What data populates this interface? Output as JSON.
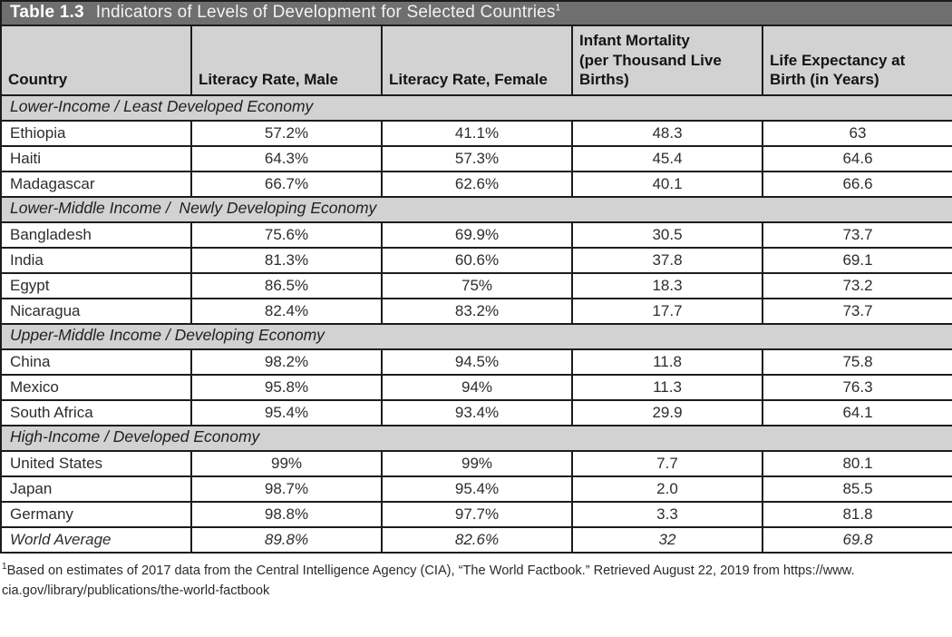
{
  "colors": {
    "title_bar_bg": "#6f6f6f",
    "header_bg": "#d2d2d2",
    "border": "#1c1c1c"
  },
  "table": {
    "title_label": "Table 1.3",
    "title_text": "Indicators of Levels of Development for Selected Countries",
    "title_superscript": "1",
    "columns": [
      {
        "lines": [
          "Country"
        ]
      },
      {
        "lines": [
          "Literacy Rate, Male"
        ]
      },
      {
        "lines": [
          "Literacy Rate, Female"
        ]
      },
      {
        "lines": [
          "Infant Mortality",
          "(per Thousand Live",
          "Births)"
        ]
      },
      {
        "lines": [
          "Life Expectancy at",
          "Birth (in Years)"
        ]
      }
    ],
    "sections": [
      {
        "label": "Lower-Income / Least Developed Economy",
        "rows": [
          {
            "country": "Ethiopia",
            "literacy_male": "57.2%",
            "literacy_female": "41.1%",
            "infant_mortality": "48.3",
            "life_expectancy": "63"
          },
          {
            "country": "Haiti",
            "literacy_male": "64.3%",
            "literacy_female": "57.3%",
            "infant_mortality": "45.4",
            "life_expectancy": "64.6"
          },
          {
            "country": "Madagascar",
            "literacy_male": "66.7%",
            "literacy_female": "62.6%",
            "infant_mortality": "40.1",
            "life_expectancy": "66.6"
          }
        ]
      },
      {
        "label": "Lower-Middle Income /  Newly Developing Economy",
        "rows": [
          {
            "country": "Bangladesh",
            "literacy_male": "75.6%",
            "literacy_female": "69.9%",
            "infant_mortality": "30.5",
            "life_expectancy": "73.7"
          },
          {
            "country": "India",
            "literacy_male": "81.3%",
            "literacy_female": "60.6%",
            "infant_mortality": "37.8",
            "life_expectancy": "69.1"
          },
          {
            "country": "Egypt",
            "literacy_male": "86.5%",
            "literacy_female": "75%",
            "infant_mortality": "18.3",
            "life_expectancy": "73.2"
          },
          {
            "country": "Nicaragua",
            "literacy_male": "82.4%",
            "literacy_female": "83.2%",
            "infant_mortality": "17.7",
            "life_expectancy": "73.7"
          }
        ]
      },
      {
        "label": "Upper-Middle Income / Developing Economy",
        "rows": [
          {
            "country": "China",
            "literacy_male": "98.2%",
            "literacy_female": "94.5%",
            "infant_mortality": "11.8",
            "life_expectancy": "75.8"
          },
          {
            "country": "Mexico",
            "literacy_male": "95.8%",
            "literacy_female": "94%",
            "infant_mortality": "11.3",
            "life_expectancy": "76.3"
          },
          {
            "country": "South Africa",
            "literacy_male": "95.4%",
            "literacy_female": "93.4%",
            "infant_mortality": "29.9",
            "life_expectancy": "64.1"
          }
        ]
      },
      {
        "label": "High-Income / Developed Economy",
        "rows": [
          {
            "country": "United States",
            "literacy_male": "99%",
            "literacy_female": "99%",
            "infant_mortality": "7.7",
            "life_expectancy": "80.1"
          },
          {
            "country": "Japan",
            "literacy_male": "98.7%",
            "literacy_female": "95.4%",
            "infant_mortality": "2.0",
            "life_expectancy": "85.5"
          },
          {
            "country": "Germany",
            "literacy_male": "98.8%",
            "literacy_female": "97.7%",
            "infant_mortality": "3.3",
            "life_expectancy": "81.8"
          }
        ]
      }
    ],
    "world_average": {
      "country": "World Average",
      "literacy_male": "89.8%",
      "literacy_female": "82.6%",
      "infant_mortality": "32",
      "life_expectancy": "69.8"
    }
  },
  "footnote": {
    "marker": "1",
    "line1": "Based on estimates of 2017 data from the Central Intelligence Agency (CIA), “The World Factbook.” Retrieved August 22, 2019 from https://www.",
    "line2": "cia.gov/library/publications/the-world-factbook"
  }
}
